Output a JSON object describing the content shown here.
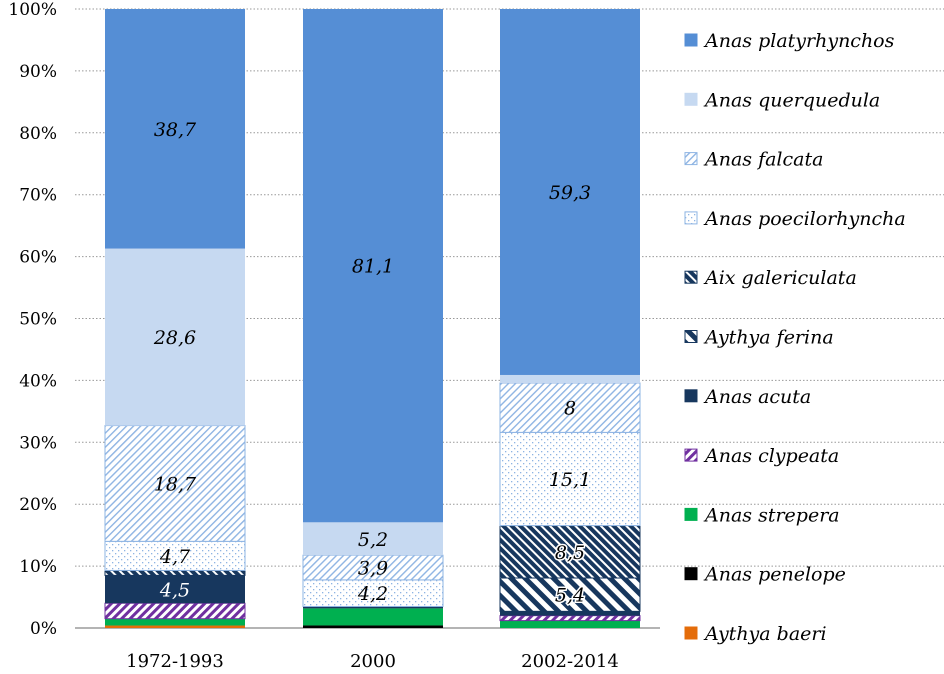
{
  "chart_data": {
    "type": "bar",
    "stacked": true,
    "percent_stacked": true,
    "categories": [
      "1972-1993",
      "2000",
      "2002-2014"
    ],
    "ylim": [
      0,
      100
    ],
    "yticks": [
      "0%",
      "10%",
      "20%",
      "30%",
      "40%",
      "50%",
      "60%",
      "70%",
      "80%",
      "90%",
      "100%"
    ],
    "grid": true,
    "legend_position": "right",
    "series": [
      {
        "name": "Aythya baeri",
        "color": "#E46C0A",
        "pattern": "solid",
        "values": [
          0.4,
          0,
          0
        ],
        "labels": [
          null,
          null,
          null
        ]
      },
      {
        "name": "Anas penelope",
        "color": "#000000",
        "pattern": "solid",
        "values": [
          0,
          0.4,
          0
        ],
        "labels": [
          null,
          null,
          null
        ]
      },
      {
        "name": "Anas strepera",
        "color": "#00B050",
        "pattern": "solid",
        "values": [
          1.1,
          2.7,
          1.2
        ],
        "labels": [
          null,
          null,
          null
        ]
      },
      {
        "name": "Anas clypeata",
        "color": "#7030A0",
        "pattern": "wide-upward-diagonal",
        "values": [
          2.5,
          0,
          0.8
        ],
        "labels": [
          null,
          null,
          null
        ]
      },
      {
        "name": "Anas acuta",
        "color": "#17375E",
        "pattern": "solid",
        "values": [
          4.5,
          0.3,
          0.7
        ],
        "labels": [
          "4,5",
          null,
          null
        ]
      },
      {
        "name": "Aythya ferina",
        "color": "#17375E",
        "pattern": "wide-downward-diagonal",
        "values": [
          0,
          0,
          5.4
        ],
        "labels": [
          null,
          null,
          "5,4"
        ]
      },
      {
        "name": "Aix galericulata",
        "color": "#17375E",
        "pattern": "dark-downward-diagonal",
        "values": [
          0.8,
          0,
          8.5
        ],
        "labels": [
          null,
          null,
          "8,5"
        ]
      },
      {
        "name": "Anas poecilorhyncha",
        "color": "#8EB4E3",
        "pattern": "dots",
        "values": [
          4.7,
          4.2,
          15.1
        ],
        "labels": [
          "4,7",
          "4,2",
          "15,1"
        ]
      },
      {
        "name": "Anas falcata",
        "color": "#8EB4E3",
        "pattern": "light-upward-diagonal",
        "values": [
          18.7,
          3.9,
          8
        ],
        "labels": [
          "18,7",
          "3,9",
          "8"
        ]
      },
      {
        "name": "Anas querquedula",
        "color": "#C6D9F1",
        "pattern": "solid",
        "values": [
          28.6,
          5.2,
          1.3
        ],
        "labels": [
          "28,6",
          "5,2",
          null
        ]
      },
      {
        "name": "Anas platyrhynchos",
        "color": "#558ED5",
        "pattern": "solid",
        "values": [
          38.7,
          81.1,
          59.3
        ],
        "labels": [
          "38,7",
          "81,1",
          "59,3"
        ]
      }
    ]
  }
}
